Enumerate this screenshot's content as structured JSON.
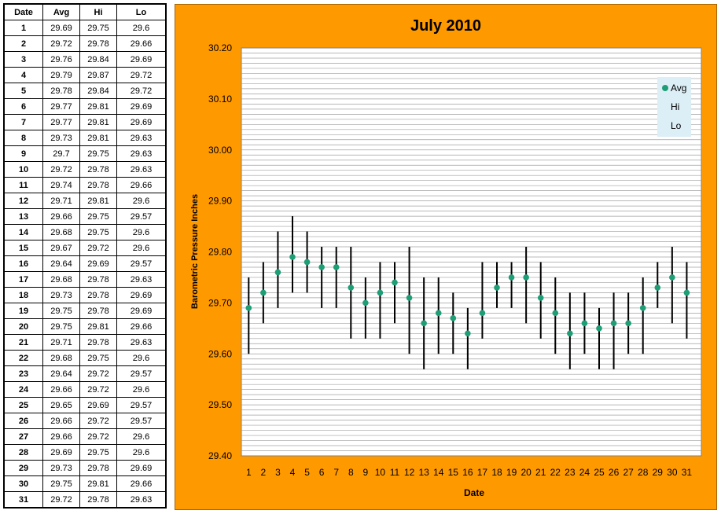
{
  "table": {
    "headers": [
      "Date",
      "Avg",
      "Hi",
      "Lo"
    ],
    "rows": [
      [
        "1",
        "29.69",
        "29.75",
        "29.6"
      ],
      [
        "2",
        "29.72",
        "29.78",
        "29.66"
      ],
      [
        "3",
        "29.76",
        "29.84",
        "29.69"
      ],
      [
        "4",
        "29.79",
        "29.87",
        "29.72"
      ],
      [
        "5",
        "29.78",
        "29.84",
        "29.72"
      ],
      [
        "6",
        "29.77",
        "29.81",
        "29.69"
      ],
      [
        "7",
        "29.77",
        "29.81",
        "29.69"
      ],
      [
        "8",
        "29.73",
        "29.81",
        "29.63"
      ],
      [
        "9",
        "29.7",
        "29.75",
        "29.63"
      ],
      [
        "10",
        "29.72",
        "29.78",
        "29.63"
      ],
      [
        "11",
        "29.74",
        "29.78",
        "29.66"
      ],
      [
        "12",
        "29.71",
        "29.81",
        "29.6"
      ],
      [
        "13",
        "29.66",
        "29.75",
        "29.57"
      ],
      [
        "14",
        "29.68",
        "29.75",
        "29.6"
      ],
      [
        "15",
        "29.67",
        "29.72",
        "29.6"
      ],
      [
        "16",
        "29.64",
        "29.69",
        "29.57"
      ],
      [
        "17",
        "29.68",
        "29.78",
        "29.63"
      ],
      [
        "18",
        "29.73",
        "29.78",
        "29.69"
      ],
      [
        "19",
        "29.75",
        "29.78",
        "29.69"
      ],
      [
        "20",
        "29.75",
        "29.81",
        "29.66"
      ],
      [
        "21",
        "29.71",
        "29.78",
        "29.63"
      ],
      [
        "22",
        "29.68",
        "29.75",
        "29.6"
      ],
      [
        "23",
        "29.64",
        "29.72",
        "29.57"
      ],
      [
        "24",
        "29.66",
        "29.72",
        "29.6"
      ],
      [
        "25",
        "29.65",
        "29.69",
        "29.57"
      ],
      [
        "26",
        "29.66",
        "29.72",
        "29.57"
      ],
      [
        "27",
        "29.66",
        "29.72",
        "29.6"
      ],
      [
        "28",
        "29.69",
        "29.75",
        "29.6"
      ],
      [
        "29",
        "29.73",
        "29.78",
        "29.69"
      ],
      [
        "30",
        "29.75",
        "29.81",
        "29.66"
      ],
      [
        "31",
        "29.72",
        "29.78",
        "29.63"
      ]
    ]
  },
  "chart_data": {
    "type": "scatter",
    "title": "July 2010",
    "xlabel": "Date",
    "ylabel": "Barometric Pressure Inches",
    "x": [
      1,
      2,
      3,
      4,
      5,
      6,
      7,
      8,
      9,
      10,
      11,
      12,
      13,
      14,
      15,
      16,
      17,
      18,
      19,
      20,
      21,
      22,
      23,
      24,
      25,
      26,
      27,
      28,
      29,
      30,
      31
    ],
    "series": [
      {
        "name": "Avg",
        "values": [
          29.69,
          29.72,
          29.76,
          29.79,
          29.78,
          29.77,
          29.77,
          29.73,
          29.7,
          29.72,
          29.74,
          29.71,
          29.66,
          29.68,
          29.67,
          29.64,
          29.68,
          29.73,
          29.75,
          29.75,
          29.71,
          29.68,
          29.64,
          29.66,
          29.65,
          29.66,
          29.66,
          29.69,
          29.73,
          29.75,
          29.72
        ]
      },
      {
        "name": "Hi",
        "values": [
          29.75,
          29.78,
          29.84,
          29.87,
          29.84,
          29.81,
          29.81,
          29.81,
          29.75,
          29.78,
          29.78,
          29.81,
          29.75,
          29.75,
          29.72,
          29.69,
          29.78,
          29.78,
          29.78,
          29.81,
          29.78,
          29.75,
          29.72,
          29.72,
          29.69,
          29.72,
          29.72,
          29.75,
          29.78,
          29.81,
          29.78
        ]
      },
      {
        "name": "Lo",
        "values": [
          29.6,
          29.66,
          29.69,
          29.72,
          29.72,
          29.69,
          29.69,
          29.63,
          29.63,
          29.63,
          29.66,
          29.6,
          29.57,
          29.6,
          29.6,
          29.57,
          29.63,
          29.69,
          29.69,
          29.66,
          29.63,
          29.6,
          29.57,
          29.6,
          29.57,
          29.57,
          29.6,
          29.6,
          29.69,
          29.66,
          29.63
        ]
      }
    ],
    "ylim": [
      29.4,
      30.2
    ],
    "y_ticks": [
      "30.20",
      "30.10",
      "30.00",
      "29.90",
      "29.80",
      "29.70",
      "29.60",
      "29.50",
      "29.40"
    ],
    "x_ticks": [
      "1",
      "2",
      "3",
      "4",
      "5",
      "6",
      "7",
      "8",
      "9",
      "10",
      "11",
      "12",
      "13",
      "14",
      "15",
      "16",
      "17",
      "18",
      "19",
      "20",
      "21",
      "22",
      "23",
      "24",
      "25",
      "26",
      "27",
      "28",
      "29",
      "30",
      "31"
    ],
    "grid": true,
    "legend_position": "top-right",
    "colors": {
      "background": "#FF9900",
      "plot_area": "#ffffff",
      "avg_marker": "#1E9E76",
      "range_line": "#000000",
      "gridline": "#a0a0a0",
      "legend_bg": "#DCEEF6"
    }
  }
}
